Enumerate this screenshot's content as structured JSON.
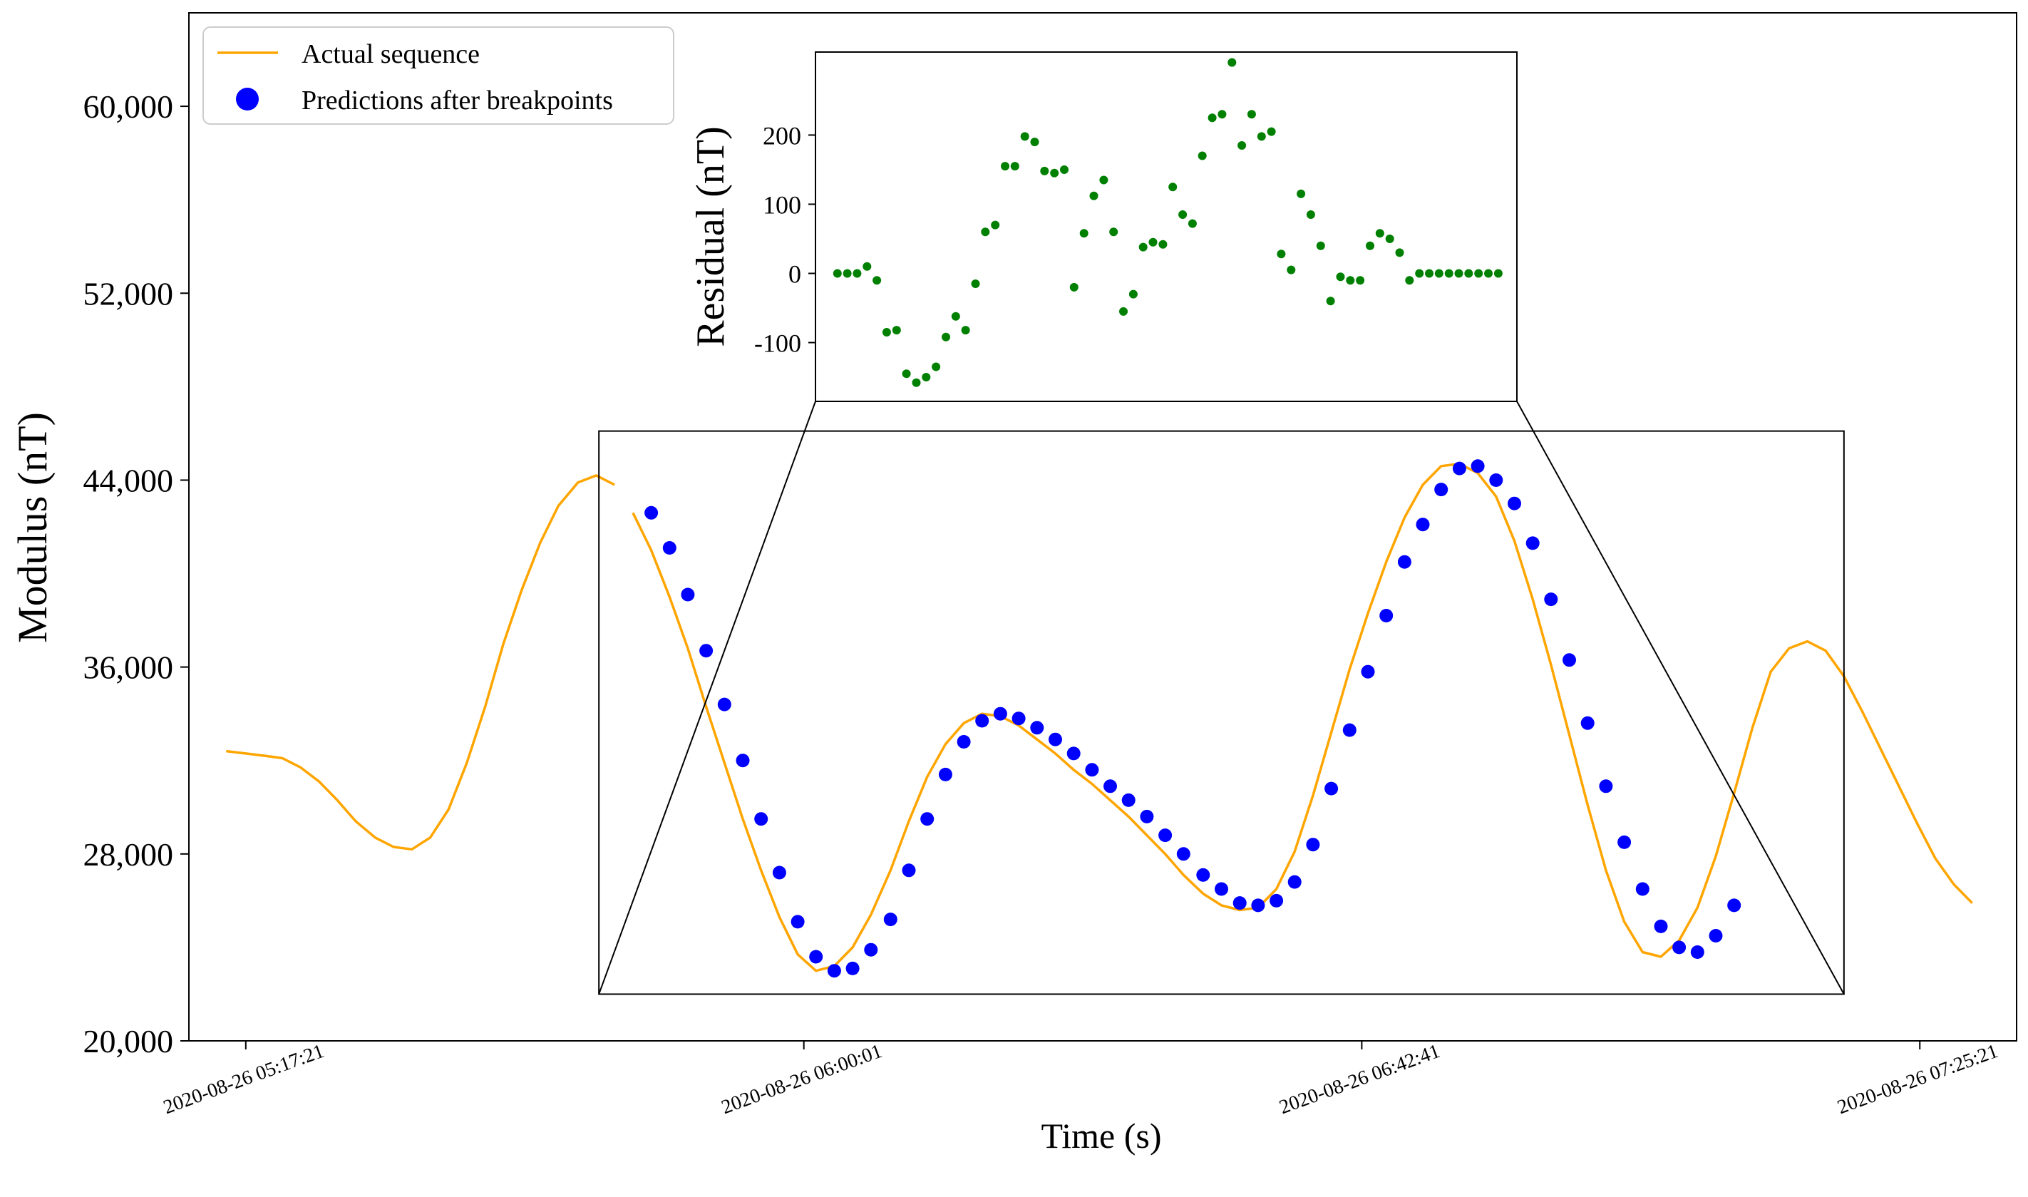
{
  "chart_data": [
    {
      "id": "main",
      "type": "line",
      "title": "",
      "xlabel": "Time (s)",
      "ylabel": "Modulus (nT)",
      "ylim": [
        20000,
        64000
      ],
      "yticks": [
        20000,
        28000,
        36000,
        44000,
        52000,
        60000
      ],
      "ytick_labels": [
        "20,000",
        "28,000",
        "36,000",
        "44,000",
        "52,000",
        "60,000"
      ],
      "xlim_minutes": [
        -4.35,
        135.4
      ],
      "xticks_minutes": [
        0,
        42.67,
        85.33,
        128
      ],
      "xtick_labels": [
        "2020-08-26 05:17:21",
        "2020-08-26 06:00:01",
        "2020-08-26 06:42:41",
        "2020-08-26 07:25:21"
      ],
      "legend": {
        "position": "top-left",
        "entries": [
          "Actual sequence",
          "Predictions after breakpoints"
        ]
      },
      "series": [
        {
          "name": "Actual sequence",
          "kind": "line",
          "color": "#FFA500",
          "segments": [
            {
              "x": [
                -1.5,
                0.0,
                1.5,
                2.8,
                4.2,
                5.6,
                7.0,
                8.4,
                9.9,
                11.3,
                12.7,
                14.1,
                15.5,
                16.9,
                18.3,
                19.7,
                21.1,
                22.5,
                23.9,
                25.4,
                26.8,
                28.2
              ],
              "y": [
                32400,
                32300,
                32200,
                32100,
                31700,
                31100,
                30300,
                29400,
                28700,
                28300,
                28200,
                28700,
                29900,
                31900,
                34300,
                37000,
                39300,
                41300,
                42900,
                43900,
                44200,
                43800
              ]
            },
            {
              "x": [
                29.6,
                31.0,
                32.4,
                33.8,
                35.2,
                36.6,
                38.0,
                39.4,
                40.8,
                42.2,
                43.6,
                45.0,
                46.4,
                47.8,
                49.3,
                50.7,
                52.1,
                53.5,
                54.9,
                56.3,
                57.7,
                59.1,
                60.5,
                61.9,
                63.3,
                64.7,
                66.1,
                67.5,
                68.9,
                70.3,
                71.7,
                73.2,
                74.6,
                76.0,
                77.4,
                78.8,
                80.2,
                81.6,
                83.0,
                84.4,
                85.8,
                87.2,
                88.6,
                90.0,
                91.4,
                92.8,
                94.2,
                95.6,
                97.0,
                98.4,
                99.8,
                101.2,
                102.6,
                104.0,
                105.4,
                106.8,
                108.2,
                109.6,
                111.0,
                112.4,
                113.8,
                115.2,
                116.6,
                118.0,
                119.4,
                120.8,
                122.2,
                123.6,
                125.0,
                126.4,
                127.8,
                129.2,
                130.6,
                132.0
              ],
              "y": [
                42600,
                41000,
                39000,
                36800,
                34300,
                31900,
                29500,
                27300,
                25300,
                23700,
                23000,
                23200,
                24000,
                25400,
                27300,
                29400,
                31300,
                32700,
                33600,
                34000,
                33900,
                33500,
                32900,
                32300,
                31600,
                31000,
                30300,
                29600,
                28800,
                28000,
                27100,
                26300,
                25800,
                25600,
                25700,
                26500,
                28100,
                30500,
                33200,
                35900,
                38300,
                40500,
                42400,
                43800,
                44600,
                44700,
                44300,
                43300,
                41400,
                38900,
                36100,
                33100,
                30100,
                27300,
                25100,
                23800,
                23600,
                24300,
                25700,
                27900,
                30600,
                33400,
                35800,
                36800,
                37100,
                36700,
                35600,
                34100,
                32500,
                30900,
                29300,
                27800,
                26700,
                25900
              ]
            }
          ]
        },
        {
          "name": "Predictions after breakpoints",
          "kind": "scatter",
          "color": "#0000FF",
          "x": [
            31.0,
            32.4,
            33.8,
            35.2,
            36.6,
            38.0,
            39.4,
            40.8,
            42.2,
            43.6,
            45.0,
            46.4,
            47.8,
            49.3,
            50.7,
            52.1,
            53.5,
            54.9,
            56.3,
            57.7,
            59.1,
            60.5,
            61.9,
            63.3,
            64.7,
            66.1,
            67.5,
            68.9,
            70.3,
            71.7,
            73.2,
            74.6,
            76.0,
            77.4,
            78.8,
            80.2,
            81.6,
            83.0,
            84.4,
            85.8,
            87.2,
            88.6,
            90.0,
            91.4,
            92.8,
            94.2,
            95.6,
            97.0,
            98.4,
            99.8,
            101.2,
            102.6,
            104.0,
            105.4,
            106.8,
            108.2,
            109.6,
            111.0,
            112.4,
            113.8
          ],
          "y": [
            42600,
            41100,
            39100,
            36700,
            34400,
            32000,
            29500,
            27200,
            25100,
            23600,
            23000,
            23100,
            23900,
            25200,
            27300,
            29500,
            31400,
            32800,
            33700,
            34000,
            33800,
            33400,
            32900,
            32300,
            31600,
            30900,
            30300,
            29600,
            28800,
            28000,
            27100,
            26500,
            25900,
            25800,
            26000,
            26800,
            28400,
            30800,
            33300,
            35800,
            38200,
            40500,
            42100,
            43600,
            44500,
            44600,
            44000,
            43000,
            41300,
            38900,
            36300,
            33600,
            30900,
            28500,
            26500,
            24900,
            24000,
            23800,
            24500,
            25800
          ]
        }
      ],
      "zoom_box": {
        "x_range_minutes": [
          27.0,
          122.2
        ],
        "y_range": [
          22000,
          46100
        ]
      }
    },
    {
      "id": "inset",
      "type": "scatter",
      "title": "",
      "xlabel": "",
      "ylabel": "Residual (nT)",
      "ylim": [
        -185,
        320
      ],
      "yticks": [
        -100,
        0,
        100,
        200
      ],
      "ytick_labels": [
        "-100",
        "0",
        "100",
        "200"
      ],
      "xlim_index": [
        -3,
        93
      ],
      "series": [
        {
          "name": "Residual",
          "color": "#008000",
          "x": [
            0,
            1.35,
            2.7,
            4.05,
            5.4,
            6.75,
            8.1,
            9.45,
            10.8,
            12.15,
            13.5,
            14.85,
            16.2,
            17.55,
            18.9,
            20.25,
            21.6,
            22.95,
            24.3,
            25.65,
            27,
            28.35,
            29.7,
            31.05,
            32.4,
            33.75,
            35.1,
            36.45,
            37.8,
            39.15,
            40.5,
            41.85,
            43.2,
            44.55,
            45.9,
            47.25,
            48.6,
            49.95,
            51.3,
            52.65,
            54,
            55.35,
            56.7,
            58.05,
            59.4,
            60.75,
            62.1,
            63.45,
            64.8,
            66.15,
            67.5,
            68.85,
            70.2,
            71.55,
            72.9,
            74.25,
            75.6,
            76.95,
            78.3,
            79.65,
            81,
            82.35,
            83.7,
            85.05,
            86.4,
            87.75,
            89.1,
            90.45
          ],
          "y": [
            0,
            0,
            0,
            10,
            -10,
            -85,
            -82,
            -145,
            -158,
            -150,
            -135,
            -92,
            -62,
            -82,
            -15,
            60,
            70,
            155,
            155,
            198,
            190,
            148,
            145,
            150,
            -20,
            58,
            112,
            135,
            60,
            -55,
            -30,
            38,
            45,
            42,
            125,
            85,
            72,
            170,
            225,
            230,
            305,
            185,
            230,
            198,
            205,
            28,
            5,
            115,
            85,
            40,
            -40,
            -5,
            -10,
            -10,
            40,
            58,
            50,
            30,
            -10,
            0,
            0,
            0,
            0,
            0,
            0,
            0,
            0,
            0
          ]
        }
      ]
    }
  ]
}
